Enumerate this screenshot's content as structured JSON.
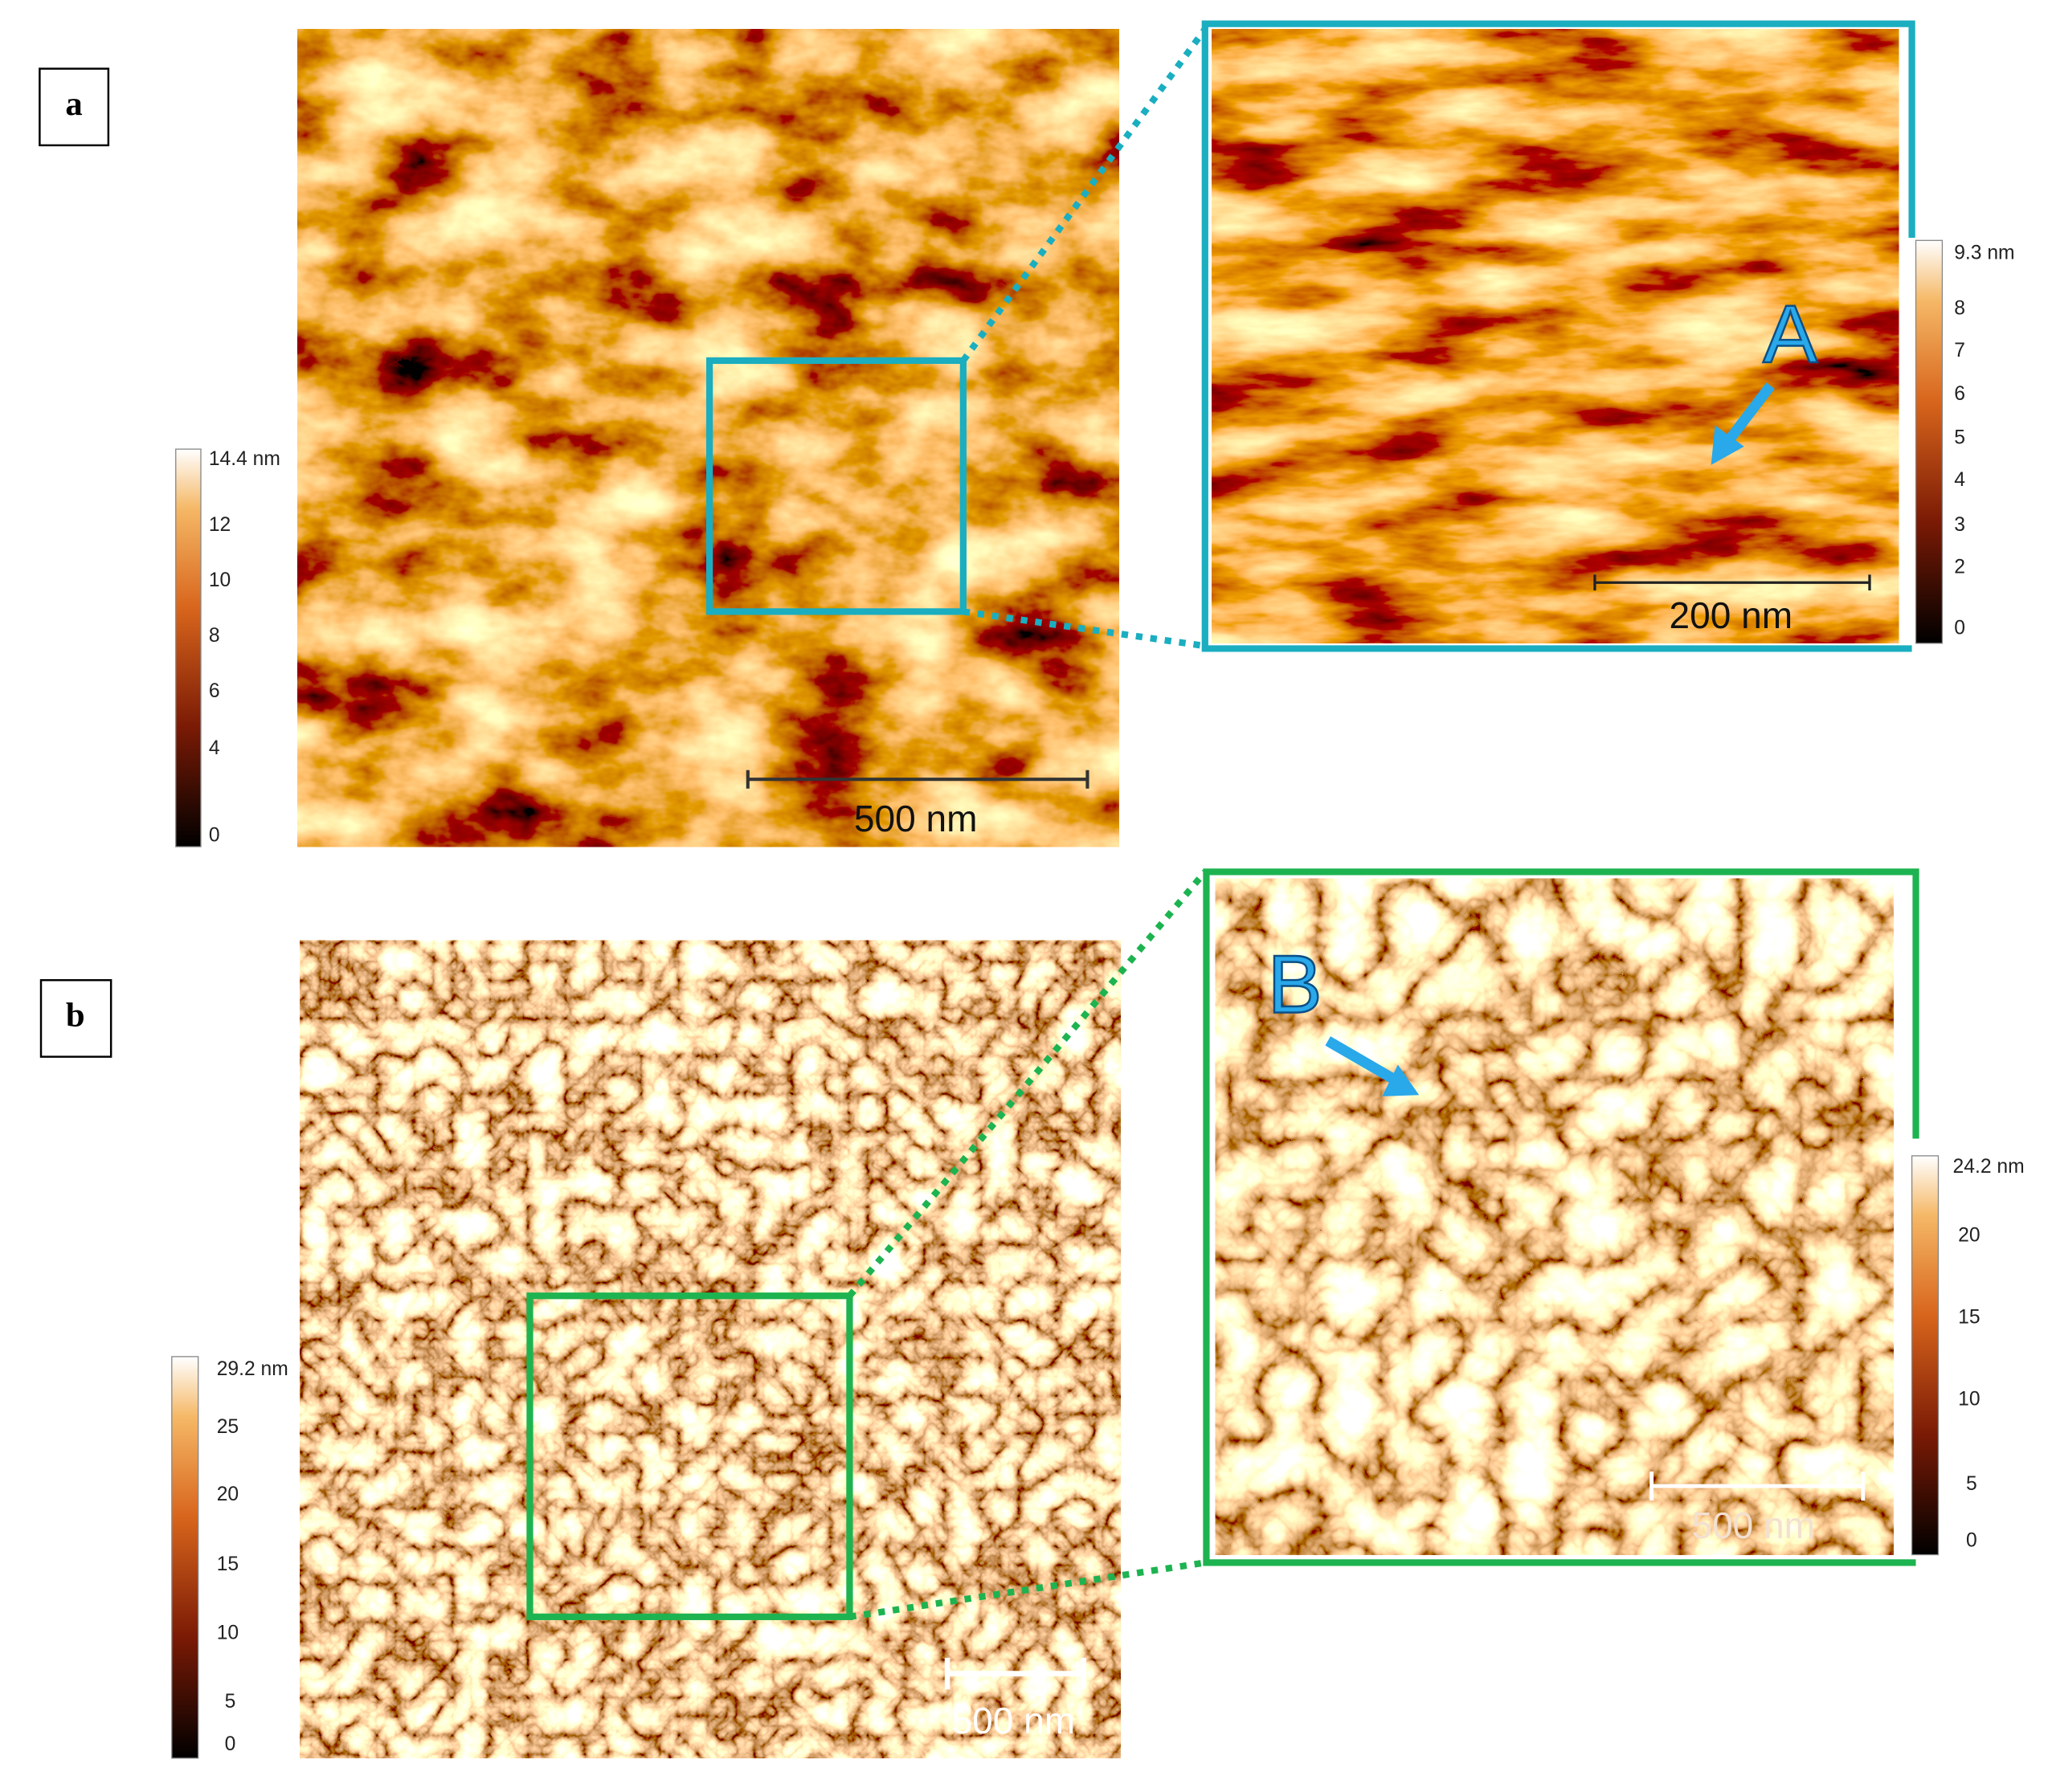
{
  "panels": [
    {
      "label": "a",
      "main": {
        "colorbar_ticks": [
          "14.4 nm",
          "12",
          "10",
          "8",
          "6",
          "4",
          "0"
        ],
        "scale_bar": "500 nm"
      },
      "inset": {
        "colorbar_ticks": [
          "9.3 nm",
          "8",
          "7",
          "6",
          "5",
          "4",
          "3",
          "2",
          "0"
        ],
        "scale_bar": "200 nm",
        "annotation": "A"
      }
    },
    {
      "label": "b",
      "main": {
        "colorbar_ticks": [
          "29.2 nm",
          "25",
          "20",
          "15",
          "10",
          "5",
          "0"
        ],
        "scale_bar": "500 nm"
      },
      "inset": {
        "colorbar_ticks": [
          "24.2 nm",
          "20",
          "15",
          "10",
          "5",
          "0"
        ],
        "scale_bar": "500 nm",
        "annotation": "B"
      }
    }
  ]
}
